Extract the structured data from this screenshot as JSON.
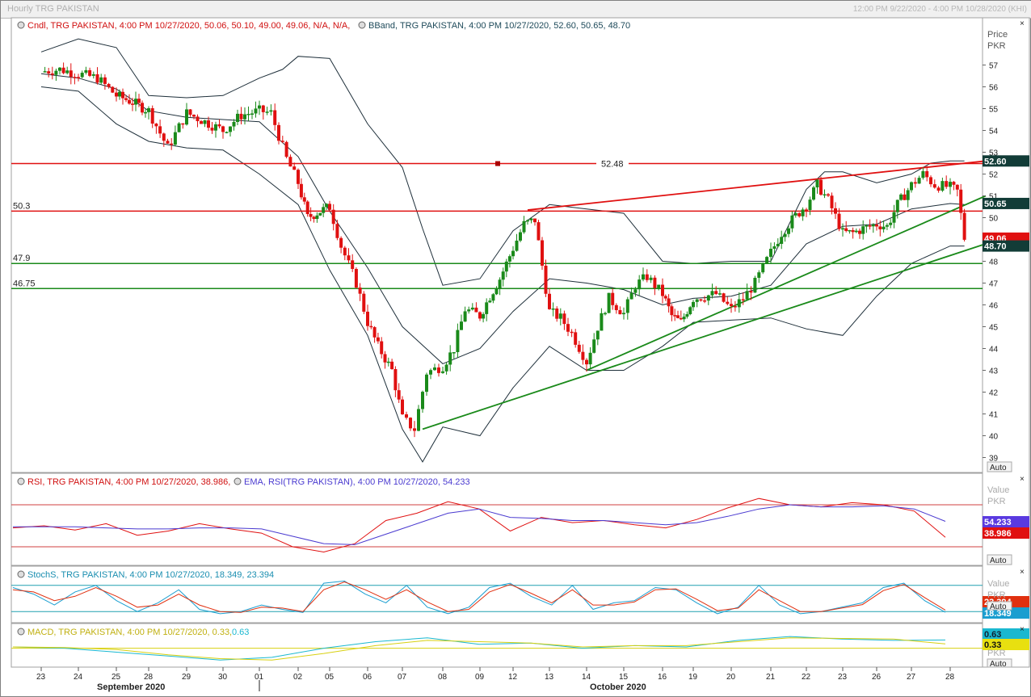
{
  "window": {
    "title": "Hourly TRG PAKISTAN",
    "date_range": "12:00 PM 9/22/2020 - 4:00 PM 10/28/2020 (KHI)"
  },
  "panes": {
    "price": {
      "legend_candle": "Cndl, TRG PAKISTAN, 4:00 PM 10/27/2020, 50.06, 50.10, 49.00, 49.06, N/A, N/A,",
      "legend_bband": "BBand, TRG PAKISTAN, 4:00 PM 10/27/2020, 52.60, 50.65, 48.70",
      "axis_title": [
        "Price",
        "PKR"
      ],
      "auto": "Auto"
    },
    "rsi": {
      "legend_rsi": "RSI, TRG PAKISTAN, 4:00 PM 10/27/2020, 38.986,",
      "legend_ema": "EMA, RSI(TRG PAKISTAN), 4:00 PM 10/27/2020, 54.233",
      "axis_title": [
        "Value",
        "PKR"
      ],
      "auto": "Auto"
    },
    "stoch": {
      "legend": "StochS, TRG PAKISTAN, 4:00 PM 10/27/2020, 18.349, 23.394",
      "axis_title": [
        "Value",
        "PKR"
      ],
      "auto": "Auto"
    },
    "macd": {
      "legend_prefix": "MACD, TRG PAKISTAN, 4:00 PM 10/27/2020, 0.33,",
      "legend_suffix": "0.63",
      "axis_title": [
        "Value",
        "PKR"
      ],
      "auto": "Auto"
    }
  },
  "x_axis": {
    "days": [
      "23",
      "24",
      "25",
      "28",
      "29",
      "30",
      "01",
      "02",
      "05",
      "06",
      "07",
      "08",
      "09",
      "12",
      "13",
      "14",
      "15",
      "16",
      "19",
      "20",
      "21",
      "22",
      "23",
      "26",
      "27",
      "28"
    ],
    "months": [
      "September 2020",
      "October 2020"
    ]
  },
  "colors": {
    "up": "#1a8a1a",
    "down": "#e01010",
    "band": "#1e2f3a",
    "red_line": "#e01010",
    "green_line": "#1a8a1a"
  },
  "chart_data": [
    {
      "type": "candlestick",
      "title": "TRG PAKISTAN Hourly",
      "ylabel": "Price PKR",
      "ylim": [
        38.5,
        58.5
      ],
      "yticks": [
        39,
        40,
        41,
        42,
        43,
        44,
        45,
        46,
        47,
        48,
        49,
        50,
        51,
        52,
        53,
        54,
        55,
        56,
        57
      ],
      "close_path": [
        [
          0,
          56.7
        ],
        [
          0.5,
          56.8
        ],
        [
          1,
          56.6
        ],
        [
          1.5,
          56.4
        ],
        [
          2,
          55.6
        ],
        [
          2.5,
          55.3
        ],
        [
          3,
          54.9
        ],
        [
          3.5,
          53.2
        ],
        [
          4,
          54.8
        ],
        [
          4.5,
          54.4
        ],
        [
          5,
          54.0
        ],
        [
          5.5,
          54.7
        ],
        [
          6,
          54.9
        ],
        [
          6.3,
          54.8
        ],
        [
          6.7,
          52.7
        ],
        [
          7,
          51.6
        ],
        [
          7.3,
          50.0
        ],
        [
          7.7,
          50.3
        ],
        [
          8,
          50.5
        ],
        [
          8.3,
          48.7
        ],
        [
          8.7,
          47.0
        ],
        [
          9,
          45.2
        ],
        [
          9.3,
          44.1
        ],
        [
          9.7,
          43.0
        ],
        [
          10,
          40.8
        ],
        [
          10.3,
          40.3
        ],
        [
          10.6,
          42.9
        ],
        [
          11,
          43.2
        ],
        [
          11.3,
          44.0
        ],
        [
          11.6,
          45.8
        ],
        [
          12,
          45.5
        ],
        [
          12.3,
          46.4
        ],
        [
          12.6,
          47.2
        ],
        [
          13,
          48.6
        ],
        [
          13.3,
          49.7
        ],
        [
          13.6,
          49.9
        ],
        [
          14,
          45.7
        ],
        [
          14.3,
          45.4
        ],
        [
          14.6,
          44.7
        ],
        [
          15,
          43.4
        ],
        [
          15.3,
          45.0
        ],
        [
          15.6,
          46.3
        ],
        [
          16,
          45.6
        ],
        [
          16.3,
          46.9
        ],
        [
          16.6,
          47.3
        ],
        [
          17,
          46.5
        ],
        [
          17.3,
          45.5
        ],
        [
          17.6,
          45.2
        ],
        [
          18,
          46.3
        ],
        [
          18.3,
          46.4
        ],
        [
          18.6,
          46.5
        ],
        [
          19,
          45.8
        ],
        [
          19.3,
          46.3
        ],
        [
          19.6,
          47.0
        ],
        [
          20,
          48.4
        ],
        [
          20.3,
          49.3
        ],
        [
          20.6,
          49.9
        ],
        [
          21,
          50.6
        ],
        [
          21.3,
          51.5
        ],
        [
          21.6,
          50.8
        ],
        [
          22,
          49.3
        ],
        [
          22.3,
          49.3
        ],
        [
          22.6,
          49.5
        ],
        [
          23,
          49.7
        ],
        [
          23.3,
          49.6
        ],
        [
          23.6,
          50.6
        ],
        [
          24,
          51.5
        ],
        [
          24.3,
          52.0
        ],
        [
          24.6,
          51.5
        ],
        [
          25,
          51.4
        ],
        [
          25.2,
          51.2
        ],
        [
          25.4,
          49.06
        ]
      ],
      "bband_upper": [
        [
          0,
          57.6
        ],
        [
          1,
          58.2
        ],
        [
          2,
          57.8
        ],
        [
          3,
          55.6
        ],
        [
          4,
          55.5
        ],
        [
          5,
          55.6
        ],
        [
          6,
          56.4
        ],
        [
          6.6,
          56.8
        ],
        [
          7,
          57.4
        ],
        [
          8,
          57.3
        ],
        [
          9,
          54.3
        ],
        [
          10,
          52.3
        ],
        [
          10.5,
          49.5
        ],
        [
          11,
          46.9
        ],
        [
          12,
          47.2
        ],
        [
          13,
          49.4
        ],
        [
          14,
          50.6
        ],
        [
          15,
          50.4
        ],
        [
          16,
          50.2
        ],
        [
          17,
          48.0
        ],
        [
          18,
          47.9
        ],
        [
          19,
          48.0
        ],
        [
          20,
          48.0
        ],
        [
          21,
          51.3
        ],
        [
          21.5,
          52.1
        ],
        [
          22,
          52.1
        ],
        [
          23,
          51.6
        ],
        [
          24,
          52.0
        ],
        [
          24.5,
          52.5
        ],
        [
          25,
          52.6
        ],
        [
          25.4,
          52.6
        ]
      ],
      "bband_middle": [
        [
          0,
          56.6
        ],
        [
          1,
          56.4
        ],
        [
          2,
          55.9
        ],
        [
          3,
          54.9
        ],
        [
          4,
          54.6
        ],
        [
          5,
          54.5
        ],
        [
          6,
          54.4
        ],
        [
          7,
          52.8
        ],
        [
          8,
          50.3
        ],
        [
          9,
          47.7
        ],
        [
          10,
          45.0
        ],
        [
          11,
          43.3
        ],
        [
          12,
          44.0
        ],
        [
          13,
          45.7
        ],
        [
          14,
          47.2
        ],
        [
          15,
          47.0
        ],
        [
          16,
          46.7
        ],
        [
          17,
          46.0
        ],
        [
          18,
          46.3
        ],
        [
          19,
          46.4
        ],
        [
          20,
          46.9
        ],
        [
          21,
          48.8
        ],
        [
          22,
          49.6
        ],
        [
          23,
          49.7
        ],
        [
          24,
          50.4
        ],
        [
          25,
          50.65
        ],
        [
          25.4,
          50.6
        ]
      ],
      "bband_lower": [
        [
          0,
          56.0
        ],
        [
          1,
          55.8
        ],
        [
          2,
          54.3
        ],
        [
          3,
          53.5
        ],
        [
          4,
          53.2
        ],
        [
          5,
          53.1
        ],
        [
          6,
          52.0
        ],
        [
          7,
          50.6
        ],
        [
          8,
          47.6
        ],
        [
          9,
          44.6
        ],
        [
          10,
          40.3
        ],
        [
          10.5,
          38.8
        ],
        [
          11,
          40.4
        ],
        [
          12,
          40.0
        ],
        [
          13,
          42.2
        ],
        [
          14,
          44.1
        ],
        [
          15,
          43.0
        ],
        [
          16,
          43.0
        ],
        [
          17,
          44.1
        ],
        [
          18,
          45.2
        ],
        [
          19,
          45.3
        ],
        [
          20,
          45.4
        ],
        [
          21,
          44.9
        ],
        [
          22,
          44.6
        ],
        [
          23,
          46.4
        ],
        [
          24,
          47.9
        ],
        [
          25,
          48.7
        ],
        [
          25.4,
          48.7
        ]
      ],
      "horizontal_lines": [
        {
          "label": "52.48",
          "value": 52.48,
          "color": "red"
        },
        {
          "label": "50.3",
          "value": 50.3,
          "color": "red"
        },
        {
          "label": "47.9",
          "value": 47.9,
          "color": "green"
        },
        {
          "label": "46.75",
          "value": 46.75,
          "color": "green"
        }
      ],
      "trendlines": [
        {
          "color": "red",
          "from": [
            13.4,
            50.35
          ],
          "to": [
            26.0,
            52.6
          ]
        },
        {
          "color": "green",
          "from": [
            10.5,
            40.3
          ],
          "to": [
            26.0,
            48.8
          ]
        },
        {
          "color": "green",
          "from": [
            15.0,
            43.0
          ],
          "to": [
            26.0,
            51.0
          ]
        }
      ],
      "value_tags": [
        {
          "label": "52.60",
          "value": 52.6,
          "bg": "#123c37"
        },
        {
          "label": "50.65",
          "value": 50.65,
          "bg": "#123c37"
        },
        {
          "label": "49.06",
          "value": 49.06,
          "bg": "#e01010"
        },
        {
          "label": "48.70",
          "value": 48.7,
          "bg": "#123c37"
        }
      ]
    },
    {
      "type": "line",
      "title": "RSI",
      "ylim": [
        20,
        80
      ],
      "levels": [
        70,
        30
      ],
      "series": [
        {
          "name": "RSI",
          "color": "#e01010",
          "values": [
            48,
            50,
            46,
            52,
            41,
            45,
            52,
            47,
            43,
            30,
            25,
            33,
            55,
            62,
            73,
            66,
            45,
            58,
            53,
            55,
            51,
            48,
            56,
            67,
            76,
            70,
            68,
            72,
            70,
            64,
            38.986
          ]
        },
        {
          "name": "EMA",
          "color": "#4a3ad0",
          "values": [
            49,
            49,
            49,
            48,
            47,
            47,
            48,
            48,
            47,
            40,
            33,
            32,
            42,
            52,
            62,
            66,
            58,
            57,
            55,
            55,
            53,
            51,
            53,
            59,
            66,
            70,
            68,
            68,
            69,
            66,
            54.233
          ]
        }
      ],
      "value_tags": [
        {
          "label": "54.233",
          "bg": "#5a3ae0"
        },
        {
          "label": "38.986",
          "bg": "#e01010"
        }
      ]
    },
    {
      "type": "line",
      "title": "StochS",
      "ylim": [
        0,
        100
      ],
      "levels": [
        80,
        20
      ],
      "series": [
        {
          "name": "%K",
          "color": "#1a9ed0",
          "values": [
            75,
            60,
            35,
            65,
            80,
            45,
            20,
            40,
            70,
            25,
            15,
            20,
            35,
            25,
            18,
            85,
            90,
            60,
            40,
            80,
            30,
            15,
            30,
            75,
            85,
            55,
            35,
            80,
            25,
            40,
            45,
            75,
            70,
            40,
            15,
            30,
            80,
            35,
            15,
            20,
            30,
            40,
            75,
            85,
            45,
            18.349
          ]
        },
        {
          "name": "%D",
          "color": "#e03010",
          "values": [
            70,
            65,
            45,
            55,
            75,
            55,
            30,
            35,
            60,
            35,
            20,
            18,
            30,
            28,
            20,
            70,
            88,
            70,
            48,
            70,
            42,
            20,
            25,
            65,
            82,
            62,
            40,
            70,
            35,
            35,
            42,
            70,
            72,
            48,
            22,
            28,
            70,
            45,
            20,
            20,
            28,
            36,
            68,
            82,
            52,
            23.394
          ]
        }
      ],
      "value_tags": [
        {
          "label": "23.394",
          "bg": "#e03010"
        },
        {
          "label": "18.349",
          "bg": "#1a9ed0"
        }
      ]
    },
    {
      "type": "line",
      "title": "MACD",
      "ylim": [
        -1.2,
        1.4
      ],
      "series": [
        {
          "name": "MACD",
          "color": "#1ab8d0",
          "values": [
            0.1,
            0.0,
            -0.3,
            -0.6,
            -0.9,
            -0.7,
            0.0,
            0.5,
            0.8,
            0.3,
            0.4,
            0.0,
            0.2,
            0.1,
            0.6,
            0.9,
            0.7,
            0.6,
            0.63
          ]
        },
        {
          "name": "Signal",
          "color": "#d8d010",
          "values": [
            0.1,
            0.05,
            -0.1,
            -0.5,
            -0.8,
            -0.9,
            -0.4,
            0.2,
            0.6,
            0.5,
            0.4,
            0.1,
            0.2,
            0.2,
            0.5,
            0.8,
            0.75,
            0.7,
            0.33
          ]
        }
      ],
      "value_tags": [
        {
          "label": "0.63",
          "bg": "#1ab8d0"
        },
        {
          "label": "0.33",
          "bg": "#e8e010"
        }
      ]
    }
  ]
}
